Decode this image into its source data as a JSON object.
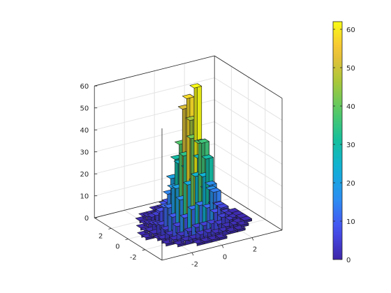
{
  "chart_data": {
    "type": "bar3d",
    "title": "",
    "xlabel": "",
    "ylabel": "",
    "zlabel": "",
    "x_bins": [
      -3.5,
      -3,
      -2.5,
      -2,
      -1.5,
      -1,
      -0.5,
      0,
      0.5,
      1,
      1.5,
      2,
      2.5,
      3,
      3.5
    ],
    "y_bins": [
      -3.5,
      -3,
      -2.5,
      -2,
      -1.5,
      -1,
      -0.5,
      0,
      0.5,
      1,
      1.5,
      2,
      2.5,
      3,
      3.5
    ],
    "x_ticks": [
      "-2",
      "0",
      "2"
    ],
    "y_ticks": [
      "-2",
      "0",
      "2"
    ],
    "z_ticks": [
      "0",
      "10",
      "20",
      "30",
      "40",
      "50",
      "60"
    ],
    "xlim": [
      -4,
      4
    ],
    "ylim": [
      -4,
      4
    ],
    "zlim": [
      0,
      60
    ],
    "grid": true,
    "colormap": "parula",
    "colorbar": {
      "location": "right",
      "range": [
        0,
        62
      ],
      "ticks": [
        "0",
        "10",
        "20",
        "30",
        "40",
        "50",
        "60"
      ]
    },
    "counts": [
      [
        0,
        0,
        0,
        0,
        0,
        0,
        0,
        0,
        0,
        0,
        0,
        0,
        0,
        0,
        0
      ],
      [
        0,
        0,
        0,
        0,
        0,
        0,
        1,
        1,
        0,
        0,
        0,
        0,
        0,
        0,
        0
      ],
      [
        0,
        0,
        0,
        1,
        2,
        1,
        2,
        2,
        1,
        1,
        0,
        0,
        0,
        0,
        0
      ],
      [
        0,
        0,
        1,
        2,
        3,
        4,
        5,
        4,
        3,
        2,
        1,
        1,
        0,
        0,
        0
      ],
      [
        0,
        0,
        2,
        3,
        6,
        9,
        12,
        11,
        8,
        5,
        3,
        2,
        1,
        0,
        0
      ],
      [
        0,
        1,
        2,
        4,
        9,
        16,
        20,
        19,
        15,
        9,
        4,
        2,
        1,
        0,
        0
      ],
      [
        0,
        1,
        3,
        5,
        12,
        22,
        34,
        38,
        30,
        20,
        8,
        3,
        2,
        1,
        0
      ],
      [
        0,
        1,
        3,
        5,
        13,
        25,
        41,
        58,
        52,
        26,
        10,
        4,
        2,
        1,
        0
      ],
      [
        0,
        1,
        2,
        5,
        11,
        24,
        38,
        62,
        46,
        23,
        9,
        4,
        2,
        1,
        0
      ],
      [
        0,
        0,
        2,
        4,
        8,
        17,
        30,
        36,
        28,
        16,
        7,
        3,
        1,
        1,
        0
      ],
      [
        0,
        0,
        1,
        2,
        5,
        9,
        14,
        16,
        13,
        8,
        4,
        2,
        1,
        0,
        0
      ],
      [
        0,
        0,
        1,
        2,
        3,
        5,
        6,
        6,
        5,
        3,
        2,
        1,
        0,
        0,
        0
      ],
      [
        0,
        0,
        0,
        1,
        1,
        2,
        2,
        2,
        2,
        1,
        1,
        0,
        0,
        0,
        0
      ],
      [
        0,
        0,
        0,
        0,
        1,
        1,
        1,
        1,
        0,
        0,
        0,
        0,
        0,
        0,
        0
      ],
      [
        0,
        0,
        0,
        0,
        0,
        0,
        0,
        0,
        0,
        0,
        0,
        0,
        0,
        0,
        0
      ]
    ]
  }
}
